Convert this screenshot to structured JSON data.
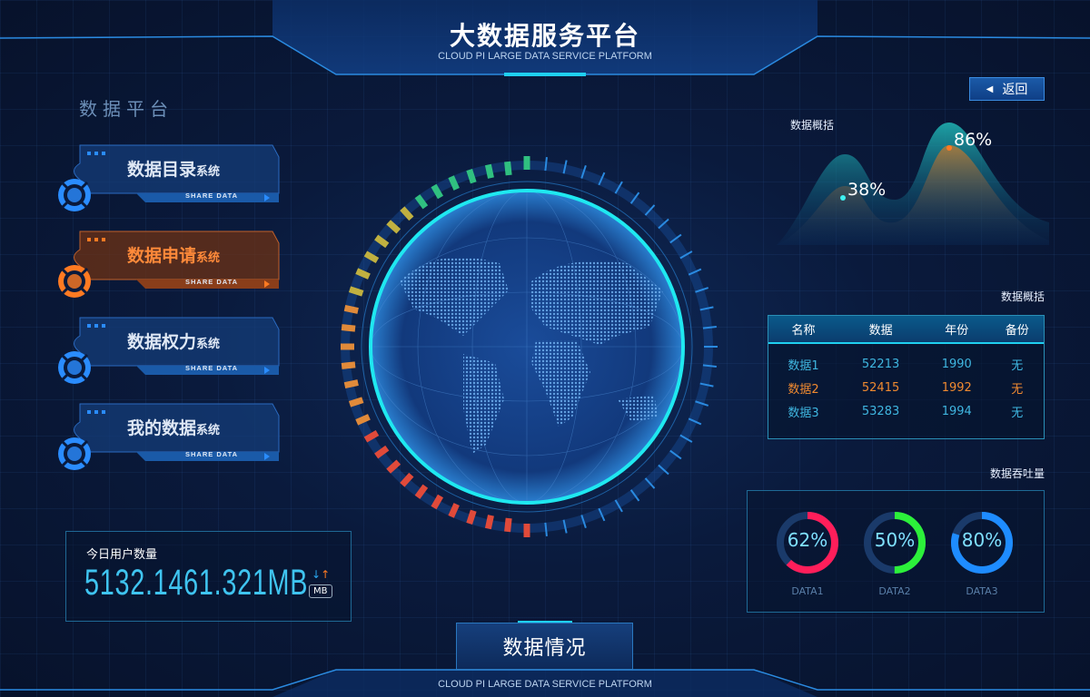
{
  "header": {
    "title": "大数据服务平台",
    "subtitle": "CLOUD PI LARGE DATA SERVICE PLATFORM"
  },
  "sidebar": {
    "title": "数据平台",
    "items": [
      {
        "main": "数据目录",
        "suffix": "系统",
        "tag": "SHARE DATA",
        "color": "#2a8cff",
        "active": false
      },
      {
        "main": "数据申请",
        "suffix": "系统",
        "tag": "SHARE DATA",
        "color": "#ff7a22",
        "active": true
      },
      {
        "main": "数据权力",
        "suffix": "系统",
        "tag": "SHARE DATA",
        "color": "#2a8cff",
        "active": false
      },
      {
        "main": "我的数据",
        "suffix": "系统",
        "tag": "SHARE DATA",
        "color": "#2a8cff",
        "active": false
      }
    ]
  },
  "back_button": {
    "label": "返回",
    "icon": "triangle-left-icon"
  },
  "overview_chart": {
    "title": "数据概括",
    "labels": [
      "38%",
      "86%"
    ],
    "chart_data": {
      "type": "area",
      "values": [
        38,
        86
      ],
      "series_colors": [
        "#1fa8b0",
        "#c07a30"
      ]
    }
  },
  "table_section": {
    "title": "数据概括",
    "columns": [
      "名称",
      "数据",
      "年份",
      "备份"
    ],
    "rows": [
      [
        "数据1",
        "52213",
        "1990",
        "无"
      ],
      [
        "数据2",
        "52415",
        "1992",
        "无"
      ],
      [
        "数据3",
        "53283",
        "1994",
        "无"
      ]
    ],
    "highlight_row": 1
  },
  "throughput": {
    "title": "数据吞吐量",
    "items": [
      {
        "label": "DATA1",
        "value": 62,
        "text": "62%",
        "color": "#ff1e5a"
      },
      {
        "label": "DATA2",
        "value": 50,
        "text": "50%",
        "color": "#2cf03a"
      },
      {
        "label": "DATA3",
        "value": 80,
        "text": "80%",
        "color": "#1e8cff"
      }
    ]
  },
  "user_count": {
    "title": "今日用户数量",
    "value": "5132.1461.321MB",
    "unit": "MB"
  },
  "footer": {
    "tab": "数据情况",
    "subtitle": "CLOUD PI LARGE DATA SERVICE PLATFORM"
  },
  "colors": {
    "accent": "#1fd0f0",
    "orange": "#ff7a22"
  }
}
